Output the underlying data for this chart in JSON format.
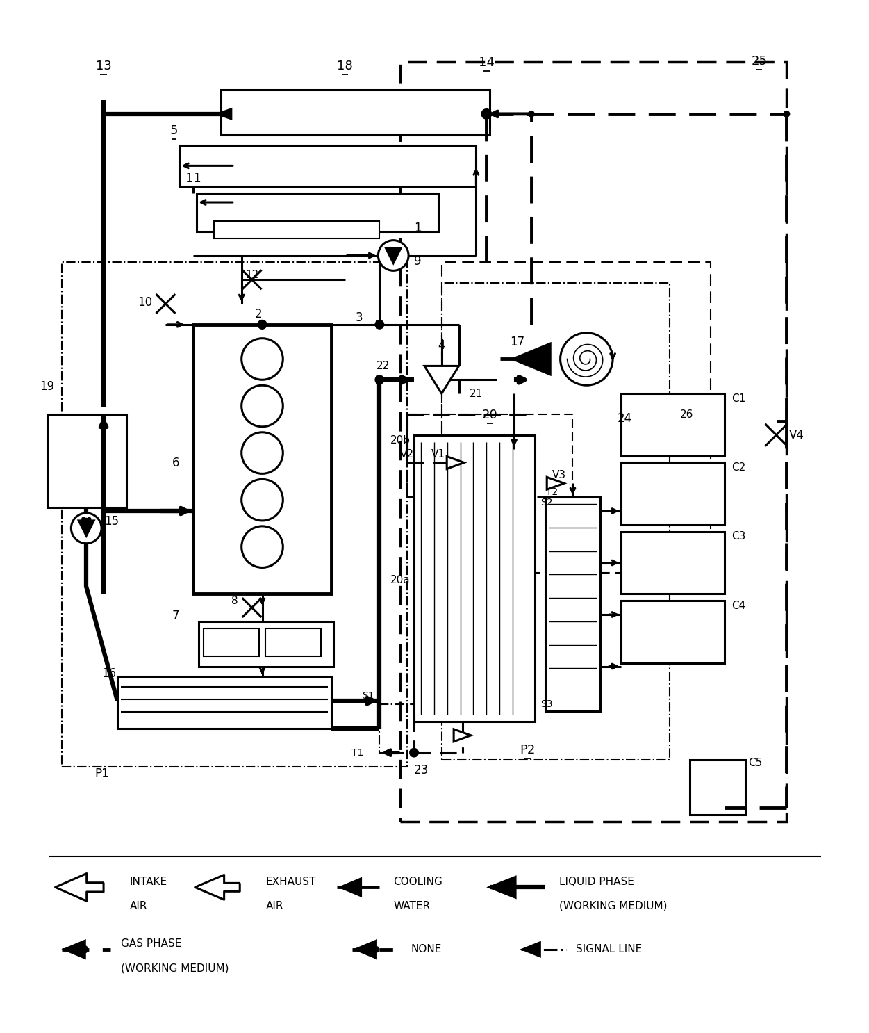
{
  "bg_color": "#ffffff",
  "fig_width": 12.4,
  "fig_height": 14.76,
  "dpi": 100
}
